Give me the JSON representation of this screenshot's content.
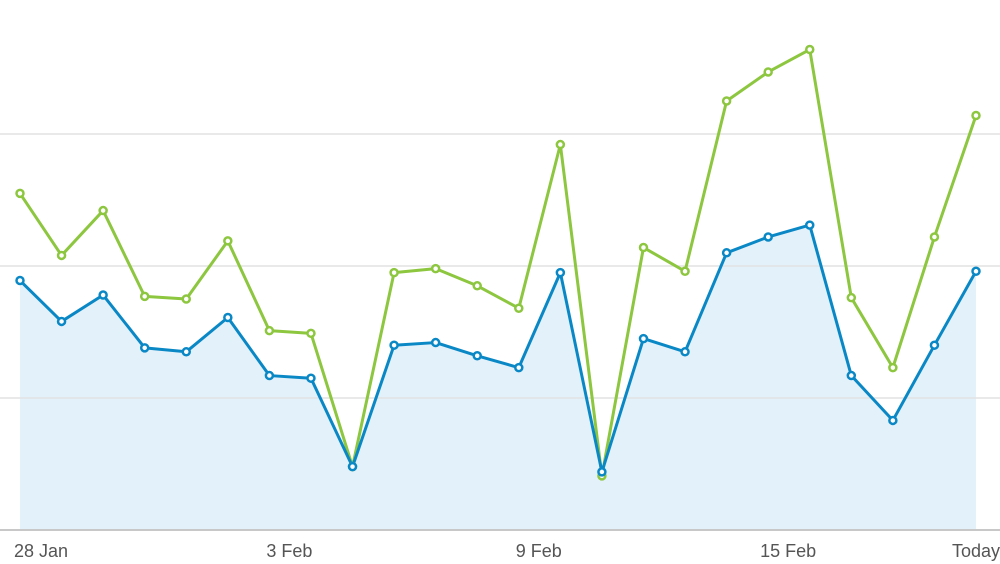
{
  "chart_data": {
    "type": "line",
    "categories": [
      "28 Jan",
      null,
      null,
      null,
      null,
      null,
      "3 Feb",
      null,
      null,
      null,
      null,
      null,
      "9 Feb",
      null,
      null,
      null,
      null,
      null,
      "15 Feb",
      null,
      null,
      null,
      null,
      "Today"
    ],
    "series": [
      {
        "color": "#0a88c6",
        "area": "#e3f1fa",
        "values": [
          189,
          158,
          178,
          138,
          135,
          161,
          117,
          115,
          48,
          140,
          142,
          132,
          123,
          195,
          44,
          145,
          135,
          210,
          222,
          231,
          117,
          83,
          140,
          196
        ]
      },
      {
        "color": "#8dc63f",
        "values": [
          255,
          208,
          242,
          177,
          175,
          219,
          151,
          149,
          48,
          195,
          198,
          185,
          168,
          292,
          41,
          214,
          196,
          325,
          347,
          364,
          176,
          123,
          222,
          314
        ]
      }
    ],
    "ylim": [
      0,
      400
    ],
    "yticks": [
      0,
      100,
      200,
      300
    ],
    "grid": true
  }
}
